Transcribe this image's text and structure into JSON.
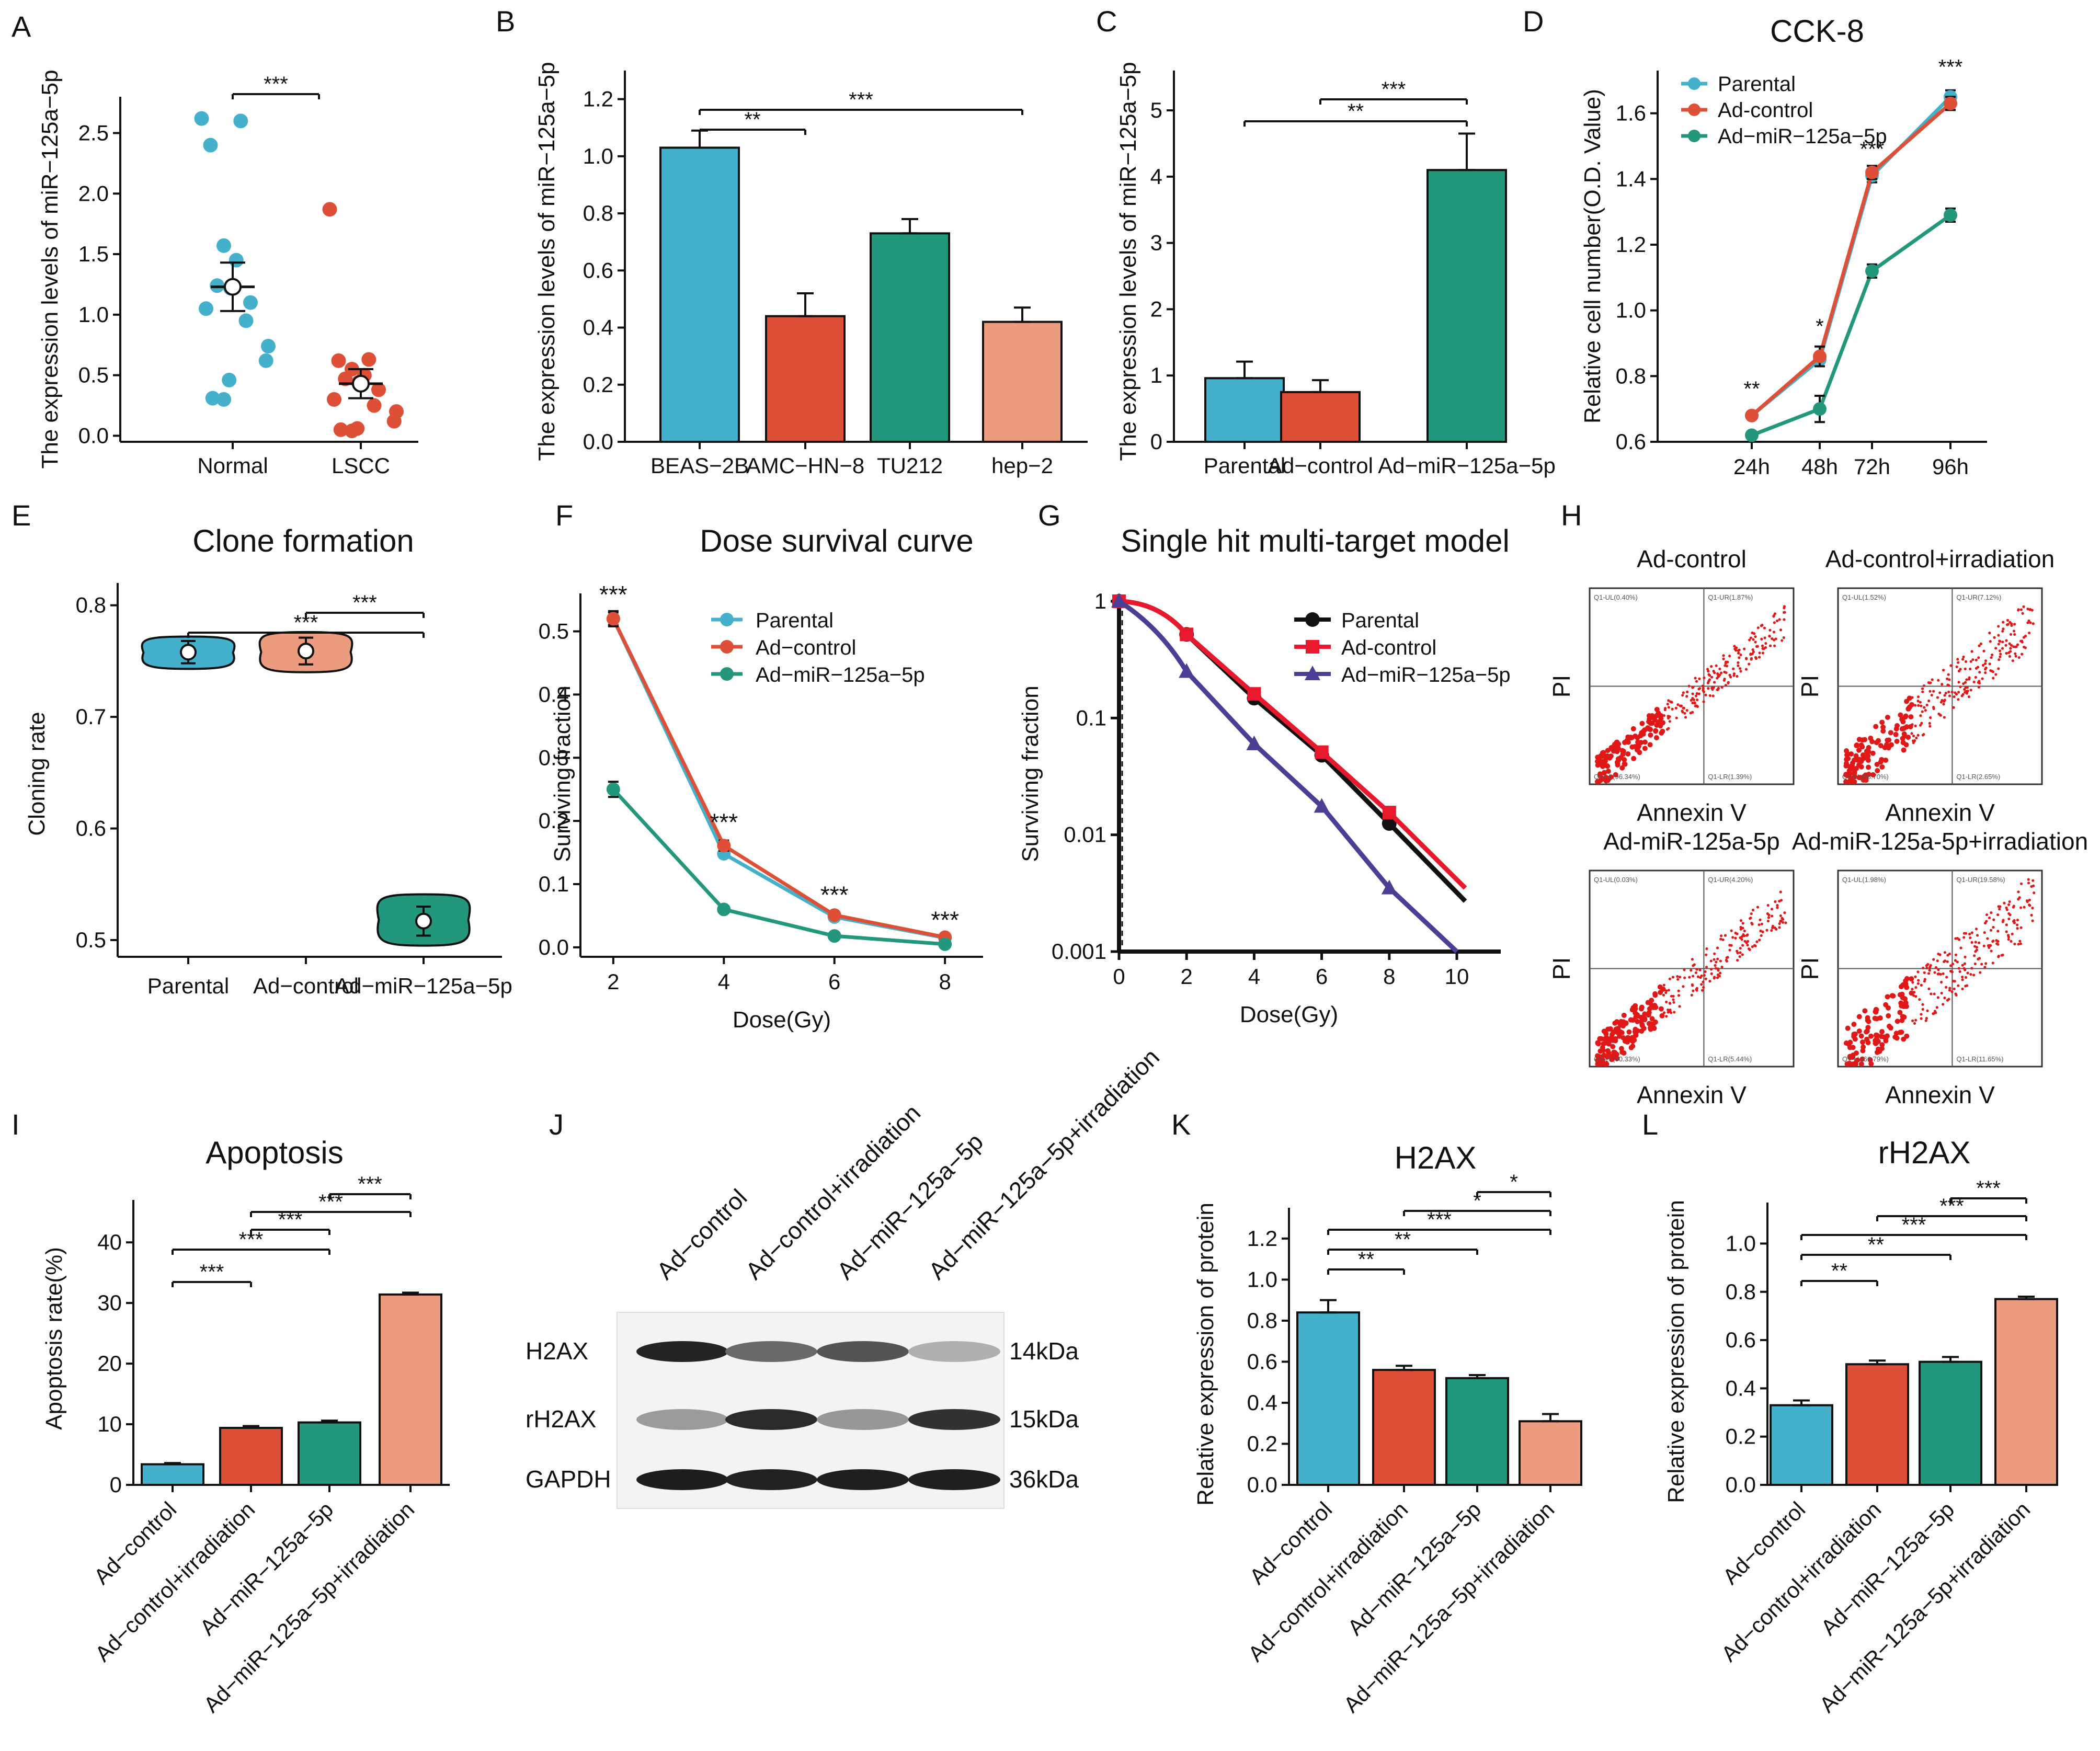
{
  "colors": {
    "blue": "#45b0cb",
    "red": "#de4f38",
    "green": "#22977c",
    "salmon": "#eb9b7e",
    "navy": "#4a3f95",
    "black": "#111111",
    "pure_red": "#e8192c"
  },
  "chart_data": [
    {
      "id": "A",
      "type": "scatter",
      "panel_label": "A",
      "ylabel": "The expression levels of miR−125a−5p",
      "categories": [
        "Normal",
        "LSCC"
      ],
      "ylim": [
        -0.05,
        2.8
      ],
      "yticks": [
        0.0,
        0.5,
        1.0,
        1.5,
        2.0,
        2.5
      ],
      "ytick_labels": [
        "0.0",
        "0.5",
        "1.0",
        "1.5",
        "2.0",
        "2.5"
      ],
      "series": [
        {
          "name": "Normal",
          "values": [
            2.62,
            2.6,
            2.4,
            1.57,
            1.45,
            1.24,
            1.22,
            1.1,
            1.05,
            0.95,
            0.74,
            0.62,
            0.46,
            0.31,
            0.3
          ],
          "mean": 1.23,
          "sem": 0.2
        },
        {
          "name": "LSCC",
          "values": [
            1.87,
            0.63,
            0.62,
            0.55,
            0.5,
            0.47,
            0.44,
            0.38,
            0.3,
            0.25,
            0.2,
            0.12,
            0.06,
            0.05,
            0.04
          ],
          "mean": 0.43,
          "sem": 0.12
        }
      ],
      "significance": [
        {
          "from": 0,
          "to": 1,
          "label": "***"
        }
      ]
    },
    {
      "id": "B",
      "type": "bar",
      "panel_label": "B",
      "ylabel": "The expression levels of miR−125a−5p",
      "categories": [
        "BEAS−2B",
        "AMC−HN−8",
        "TU212",
        "hep−2"
      ],
      "values": [
        1.03,
        0.44,
        0.73,
        0.42
      ],
      "errors": [
        0.06,
        0.08,
        0.05,
        0.05
      ],
      "ylim": [
        0,
        1.3
      ],
      "yticks": [
        0,
        0.2,
        0.4,
        0.6,
        0.8,
        1.0,
        1.2
      ],
      "ytick_labels": [
        "0.0",
        "0.2",
        "0.4",
        "0.6",
        "0.8",
        "1.0",
        "1.2"
      ],
      "significance": [
        {
          "from": 0,
          "to": 1,
          "label": "**"
        },
        {
          "from": 0,
          "to": 3,
          "label": "***"
        }
      ]
    },
    {
      "id": "C",
      "type": "bar",
      "panel_label": "C",
      "ylabel": "The expression levels of miR−125a−5p",
      "categories": [
        "Parental",
        "Ad−control",
        "Ad−miR−125a−5p"
      ],
      "values": [
        0.96,
        0.75,
        4.1
      ],
      "errors": [
        0.25,
        0.18,
        0.55
      ],
      "ylim": [
        0,
        5.6
      ],
      "yticks": [
        0,
        1,
        2,
        3,
        4,
        5
      ],
      "ytick_labels": [
        "0",
        "1",
        "2",
        "3",
        "4",
        "5"
      ],
      "significance": [
        {
          "from": 0,
          "to": 2,
          "label": "**"
        },
        {
          "from": 1,
          "to": 2,
          "label": "***"
        }
      ]
    },
    {
      "id": "D",
      "type": "line",
      "panel_label": "D",
      "title": "CCK-8",
      "ylabel": "Relative cell number(O.D. Value)",
      "categories": [
        "24h",
        "48h",
        "72h",
        "96h"
      ],
      "ylim": [
        0.6,
        1.73
      ],
      "yticks": [
        0.6,
        0.8,
        1.0,
        1.2,
        1.4,
        1.6
      ],
      "ytick_labels": [
        "0.6",
        "0.8",
        "1.0",
        "1.2",
        "1.4",
        "1.6"
      ],
      "series": [
        {
          "name": "Parental",
          "values": [
            0.68,
            0.85,
            1.41,
            1.65
          ],
          "errors": [
            0.01,
            0.02,
            0.02,
            0.02
          ]
        },
        {
          "name": "Ad-control",
          "values": [
            0.68,
            0.86,
            1.42,
            1.63
          ],
          "errors": [
            0.01,
            0.03,
            0.02,
            0.02
          ]
        },
        {
          "name": "Ad−miR−125a−5p",
          "values": [
            0.62,
            0.7,
            1.12,
            1.29
          ],
          "errors": [
            0.01,
            0.04,
            0.02,
            0.02
          ]
        }
      ],
      "annotations": [
        "**",
        "*",
        "***",
        "***"
      ]
    },
    {
      "id": "E",
      "type": "violin",
      "panel_label": "E",
      "title": "Clone formation",
      "ylabel": "Cloning rate",
      "categories": [
        "Parental",
        "Ad−control",
        "Ad−miR−125a−5p"
      ],
      "values": [
        0.758,
        0.759,
        0.517
      ],
      "errors": [
        0.01,
        0.012,
        0.013
      ],
      "ranges": [
        [
          0.743,
          0.772
        ],
        [
          0.74,
          0.776
        ],
        [
          0.495,
          0.541
        ]
      ],
      "ylim": [
        0.485,
        0.82
      ],
      "yticks": [
        0.5,
        0.6,
        0.7,
        0.8
      ],
      "ytick_labels": [
        "0.5",
        "0.6",
        "0.7",
        "0.8"
      ],
      "significance": [
        {
          "from": 0,
          "to": 2,
          "label": "***"
        },
        {
          "from": 1,
          "to": 2,
          "label": "***"
        }
      ]
    },
    {
      "id": "F",
      "type": "line",
      "panel_label": "F",
      "title": "Dose survival curve",
      "xlabel": "Dose(Gy)",
      "ylabel": "Surviving fraction",
      "x": [
        2,
        4,
        6,
        8
      ],
      "xlim": [
        1.5,
        8.5
      ],
      "ylim": [
        -0.015,
        0.56
      ],
      "yticks": [
        0.0,
        0.1,
        0.2,
        0.3,
        0.4,
        0.5
      ],
      "ytick_labels": [
        "0.0",
        "0.1",
        "0.2",
        "0.3",
        "0.4",
        "0.5"
      ],
      "series": [
        {
          "name": "Parental",
          "values": [
            0.52,
            0.148,
            0.048,
            0.015
          ],
          "errors": [
            0.01,
            0.005,
            0.003,
            0.002
          ]
        },
        {
          "name": "Ad−control",
          "values": [
            0.52,
            0.161,
            0.051,
            0.016
          ],
          "errors": [
            0.012,
            0.008,
            0.003,
            0.002
          ]
        },
        {
          "name": "Ad−miR−125a−5p",
          "values": [
            0.25,
            0.06,
            0.018,
            0.005
          ],
          "errors": [
            0.012,
            0.004,
            0.002,
            0.001
          ]
        }
      ],
      "annotations": [
        "***",
        "***",
        "***",
        "***"
      ]
    },
    {
      "id": "G",
      "type": "line",
      "panel_label": "G",
      "title": "Single hit multi-target model",
      "xlabel": "Dose(Gy)",
      "ylabel": "Surviving fraction",
      "scale": "log",
      "xlim": [
        0,
        11.3
      ],
      "ylim": [
        0.001,
        1
      ],
      "xticks": [
        0,
        2,
        4,
        6,
        8,
        10
      ],
      "yticks": [
        1,
        0.1,
        0.01,
        0.001
      ],
      "ytick_labels": [
        "1",
        "0.1",
        "0.01",
        "0.001"
      ],
      "series": [
        {
          "name": "Parental",
          "points": [
            [
              0,
              1
            ],
            [
              2,
              0.52
            ],
            [
              4,
              0.148
            ],
            [
              6,
              0.048
            ],
            [
              8,
              0.0125
            ]
          ],
          "fit_end": [
            10.25,
            0.0027
          ]
        },
        {
          "name": "Ad-control",
          "points": [
            [
              0,
              1
            ],
            [
              2,
              0.52
            ],
            [
              4,
              0.161
            ],
            [
              6,
              0.051
            ],
            [
              8,
              0.0155
            ]
          ],
          "fit_end": [
            10.25,
            0.0035
          ]
        },
        {
          "name": "Ad−miR−125a−5p",
          "points": [
            [
              0,
              1
            ],
            [
              2,
              0.25
            ],
            [
              4,
              0.06
            ],
            [
              6,
              0.0175
            ],
            [
              8,
              0.0035
            ]
          ],
          "fit_end": [
            10,
            0.001
          ]
        }
      ]
    },
    {
      "id": "I",
      "type": "bar",
      "panel_label": "I",
      "title": "Apoptosis",
      "ylabel": "Apoptosis rate(%)",
      "categories": [
        "Ad−control",
        "Ad−control+irradiation",
        "Ad−miR−125a−5p",
        "Ad−miR−125a−5p+irradiation"
      ],
      "values": [
        3.4,
        9.4,
        10.3,
        31.4
      ],
      "errors": [
        0.2,
        0.3,
        0.3,
        0.3
      ],
      "ylim": [
        0,
        47
      ],
      "yticks": [
        0,
        10,
        20,
        30,
        40
      ],
      "ytick_labels": [
        "0",
        "10",
        "20",
        "30",
        "40"
      ],
      "significance": [
        {
          "from": 0,
          "to": 1,
          "label": "***"
        },
        {
          "from": 0,
          "to": 2,
          "label": "***"
        },
        {
          "from": 1,
          "to": 2,
          "label": "***"
        },
        {
          "from": 1,
          "to": 3,
          "label": "***"
        },
        {
          "from": 2,
          "to": 3,
          "label": "***"
        }
      ]
    },
    {
      "id": "K",
      "type": "bar",
      "panel_label": "K",
      "title": "H2AX",
      "ylabel": "Relative expression of protein",
      "categories": [
        "Ad−control",
        "Ad−control+irradiation",
        "Ad−miR−125a−5p",
        "Ad−miR−125a−5p+irradiation"
      ],
      "values": [
        0.84,
        0.56,
        0.52,
        0.31
      ],
      "errors": [
        0.06,
        0.02,
        0.015,
        0.035
      ],
      "ylim": [
        0,
        1.35
      ],
      "yticks": [
        0,
        0.2,
        0.4,
        0.6,
        0.8,
        1.0,
        1.2
      ],
      "ytick_labels": [
        "0.0",
        "0.2",
        "0.4",
        "0.6",
        "0.8",
        "1.0",
        "1.2"
      ],
      "significance": [
        {
          "from": 0,
          "to": 1,
          "label": "**"
        },
        {
          "from": 0,
          "to": 2,
          "label": "**"
        },
        {
          "from": 0,
          "to": 3,
          "label": "***"
        },
        {
          "from": 1,
          "to": 3,
          "label": "*"
        },
        {
          "from": 2,
          "to": 3,
          "label": "*"
        }
      ]
    },
    {
      "id": "L",
      "type": "bar",
      "panel_label": "L",
      "title": "rH2AX",
      "ylabel": "Relative expression of protein",
      "categories": [
        "Ad−control",
        "Ad−control+irradiation",
        "Ad−miR−125a−5p",
        "Ad−miR−125a−5p+irradiation"
      ],
      "values": [
        0.33,
        0.5,
        0.51,
        0.77
      ],
      "errors": [
        0.02,
        0.015,
        0.02,
        0.01
      ],
      "ylim": [
        0,
        1.17
      ],
      "yticks": [
        0,
        0.2,
        0.4,
        0.6,
        0.8,
        1.0
      ],
      "ytick_labels": [
        "0.0",
        "0.2",
        "0.4",
        "0.6",
        "0.8",
        "1.0"
      ],
      "significance": [
        {
          "from": 0,
          "to": 1,
          "label": "**"
        },
        {
          "from": 0,
          "to": 2,
          "label": "**"
        },
        {
          "from": 0,
          "to": 3,
          "label": "***"
        },
        {
          "from": 1,
          "to": 3,
          "label": "***"
        },
        {
          "from": 2,
          "to": 3,
          "label": "***"
        }
      ]
    }
  ],
  "flow_panel": {
    "panel_label": "H",
    "xlabel": "Annexin V",
    "ylabel": "PI",
    "plots": [
      {
        "title": "Ad-control",
        "UL": "Q1-UL(0.40%)",
        "UR": "Q1-UR(1.87%)",
        "LL": "Q1-LL(96.34%)",
        "LR": "Q1-LR(1.39%)"
      },
      {
        "title": "Ad-control+irradiation",
        "UL": "Q1-UL(1.52%)",
        "UR": "Q1-UR(7.12%)",
        "LL": "Q1-LL(88.70%)",
        "LR": "Q1-LR(2.65%)"
      },
      {
        "title": "Ad-miR-125a-5p",
        "UL": "Q1-UL(0.03%)",
        "UR": "Q1-UR(4.20%)",
        "LL": "Q1-LL(90.33%)",
        "LR": "Q1-LR(5.44%)"
      },
      {
        "title": "Ad-miR-125a-5p+irradiation",
        "UL": "Q1-UL(1.98%)",
        "UR": "Q1-UR(19.58%)",
        "LL": "Q1-LL(66.79%)",
        "LR": "Q1-LR(11.65%)"
      }
    ]
  },
  "blot_panel": {
    "panel_label": "J",
    "lanes": [
      "Ad−control",
      "Ad−control+irradiation",
      "Ad−miR−125a−5p",
      "Ad−miR−125a−5p+irradiation"
    ],
    "rows": [
      {
        "protein": "H2AX",
        "size": "14kDa",
        "intensity": [
          0.95,
          0.62,
          0.72,
          0.28
        ]
      },
      {
        "protein": "rH2AX",
        "size": "15kDa",
        "intensity": [
          0.38,
          0.92,
          0.4,
          0.88
        ]
      },
      {
        "protein": "GAPDH",
        "size": "36kDa",
        "intensity": [
          0.98,
          0.96,
          0.97,
          0.97
        ]
      }
    ]
  }
}
